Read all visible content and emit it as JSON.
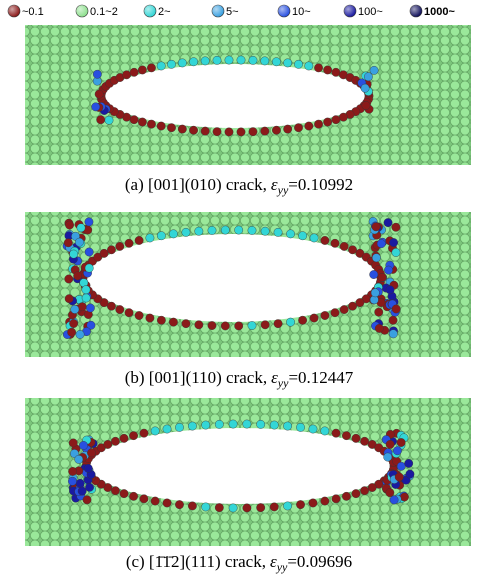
{
  "legend": {
    "items": [
      {
        "label": "~0.1",
        "color": "#8b1a1a"
      },
      {
        "label": "0.1~2",
        "color": "#8fe08f"
      },
      {
        "label": "2~",
        "color": "#33d6d6"
      },
      {
        "label": "5~",
        "color": "#3aa0e0"
      },
      {
        "label": "10~",
        "color": "#2850e0"
      },
      {
        "label": "100~",
        "color": "#1a1aa0"
      },
      {
        "label": "1000~",
        "color": "#10105a"
      }
    ]
  },
  "panels": [
    {
      "caption": {
        "label": "(a) [001](010) crack,",
        "symbol": "ε",
        "subscript": "yy",
        "value": "=0.10992"
      }
    },
    {
      "caption": {
        "label": "(b) [001](110) crack,",
        "symbol": "ε",
        "subscript": "yy",
        "value": "=0.12447"
      }
    },
    {
      "caption": {
        "label": "(c) [1̄1̄2](111) crack,",
        "symbol": "ε",
        "subscript": "yy",
        "value": "=0.09696"
      }
    }
  ]
}
